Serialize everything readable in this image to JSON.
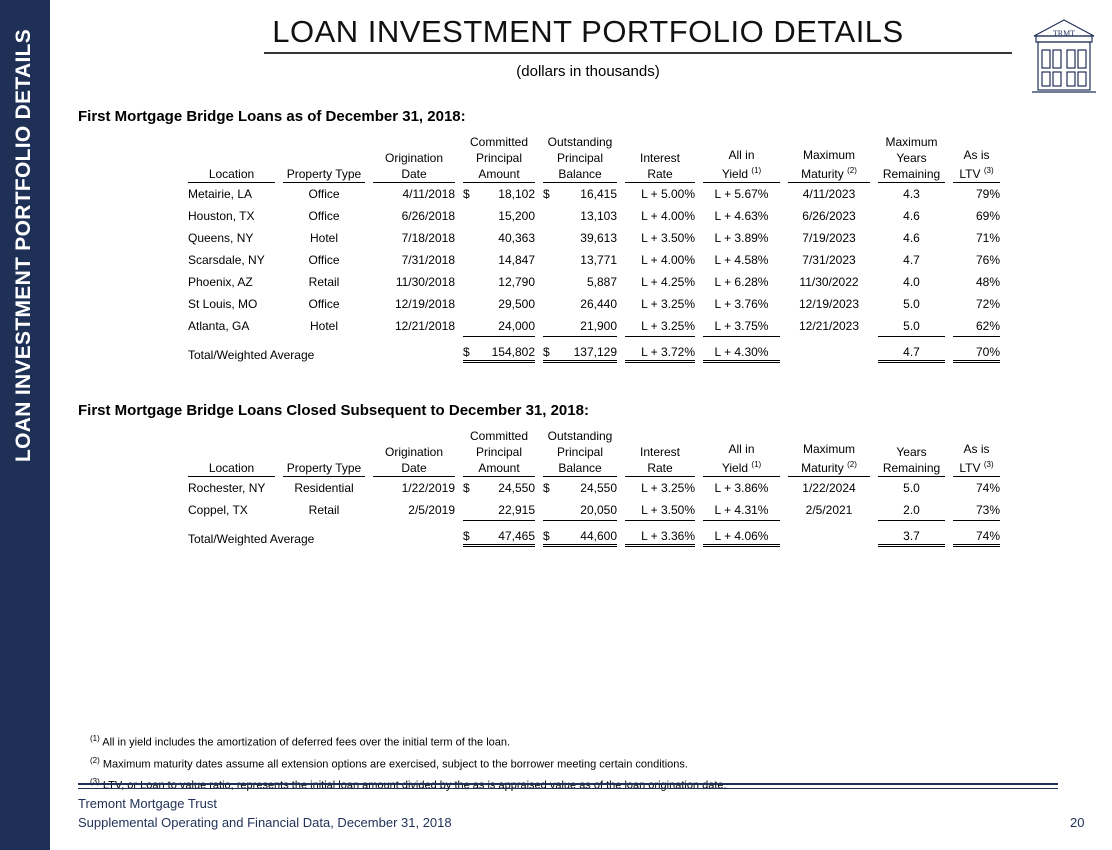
{
  "sidebar": "LOAN INVESTMENT PORTFOLIO DETAILS",
  "header": {
    "title": "LOAN INVESTMENT PORTFOLIO DETAILS",
    "subtitle": "(dollars in thousands)",
    "logo": "TRMT"
  },
  "tables": [
    {
      "heading": "First Mortgage Bridge Loans as of December 31, 2018:",
      "columns": [
        {
          "lines": [
            "Location"
          ]
        },
        {
          "lines": [
            "Property Type"
          ]
        },
        {
          "lines": [
            "Origination",
            "Date"
          ]
        },
        {
          "lines": [
            "Committed",
            "Principal",
            "Amount"
          ]
        },
        {
          "lines": [
            "Outstanding",
            "Principal",
            "Balance"
          ]
        },
        {
          "lines": [
            "Interest",
            "Rate"
          ]
        },
        {
          "lines": [
            "All in",
            "Yield"
          ],
          "note": "(1)"
        },
        {
          "lines": [
            "Maximum",
            "Maturity"
          ],
          "note": "(2)"
        },
        {
          "lines": [
            "Maximum",
            "Years",
            "Remaining"
          ]
        },
        {
          "lines": [
            "As is",
            "LTV"
          ],
          "note": "(3)"
        }
      ],
      "rows": [
        [
          "Metairie, LA",
          "Office",
          "4/11/2018",
          {
            "symbol": "$",
            "text": "18,102"
          },
          {
            "symbol": "$",
            "text": "16,415"
          },
          "L + 5.00%",
          "L + 5.67%",
          "4/11/2023",
          "4.3",
          "79%"
        ],
        [
          "Houston, TX",
          "Office",
          "6/26/2018",
          "15,200",
          "13,103",
          "L + 4.00%",
          "L + 4.63%",
          "6/26/2023",
          "4.6",
          "69%"
        ],
        [
          "Queens, NY",
          "Hotel",
          "7/18/2018",
          "40,363",
          "39,613",
          "L + 3.50%",
          "L + 3.89%",
          "7/19/2023",
          "4.6",
          "71%"
        ],
        [
          "Scarsdale, NY",
          "Office",
          "7/31/2018",
          "14,847",
          "13,771",
          "L + 4.00%",
          "L + 4.58%",
          "7/31/2023",
          "4.7",
          "76%"
        ],
        [
          "Phoenix, AZ",
          "Retail",
          "11/30/2018",
          "12,790",
          "5,887",
          "L + 4.25%",
          "L + 6.28%",
          "11/30/2022",
          "4.0",
          "48%"
        ],
        [
          "St Louis, MO",
          "Office",
          "12/19/2018",
          "29,500",
          "26,440",
          "L + 3.25%",
          "L + 3.76%",
          "12/19/2023",
          "5.0",
          "72%"
        ],
        [
          "Atlanta, GA",
          "Hotel",
          "12/21/2018",
          "24,000",
          "21,900",
          "L + 3.25%",
          "L + 3.75%",
          "12/21/2023",
          "5.0",
          "62%"
        ]
      ],
      "total": {
        "label": "Total/Weighted Average",
        "cells": [
          {
            "symbol": "$",
            "text": "154,802"
          },
          {
            "symbol": "$",
            "text": "137,129"
          },
          "L + 3.72%",
          "L + 4.30%",
          null,
          "4.7",
          "70%"
        ]
      }
    },
    {
      "heading": "First Mortgage Bridge Loans Closed Subsequent to December 31, 2018:",
      "columns": [
        {
          "lines": [
            "Location"
          ]
        },
        {
          "lines": [
            "Property Type"
          ]
        },
        {
          "lines": [
            "Origination",
            "Date"
          ]
        },
        {
          "lines": [
            "Committed",
            "Principal",
            "Amount"
          ]
        },
        {
          "lines": [
            "Outstanding",
            "Principal",
            "Balance"
          ]
        },
        {
          "lines": [
            "Interest",
            "Rate"
          ]
        },
        {
          "lines": [
            "All in",
            "Yield"
          ],
          "note": "(1)"
        },
        {
          "lines": [
            "Maximum",
            "Maturity"
          ],
          "note": "(2)"
        },
        {
          "lines": [
            "Years",
            "Remaining"
          ]
        },
        {
          "lines": [
            "As is",
            "LTV"
          ],
          "note": "(3)"
        }
      ],
      "rows": [
        [
          "Rochester, NY",
          "Residential",
          "1/22/2019",
          {
            "symbol": "$",
            "text": "24,550"
          },
          {
            "symbol": "$",
            "text": "24,550"
          },
          "L + 3.25%",
          "L + 3.86%",
          "1/22/2024",
          "5.0",
          "74%"
        ],
        [
          "Coppel, TX",
          "Retail",
          "2/5/2019",
          "22,915",
          "20,050",
          "L + 3.50%",
          "L + 4.31%",
          "2/5/2021",
          "2.0",
          "73%"
        ]
      ],
      "total": {
        "label": "Total/Weighted Average",
        "cells": [
          {
            "symbol": "$",
            "text": "47,465"
          },
          {
            "symbol": "$",
            "text": "44,600"
          },
          "L + 3.36%",
          "L + 4.06%",
          null,
          "3.7",
          "74%"
        ]
      }
    }
  ],
  "footnotes": [
    {
      "mark": "(1)",
      "text": "All in yield includes the amortization of deferred fees over the initial term of the loan."
    },
    {
      "mark": "(2)",
      "text": "Maximum maturity dates assume all extension options are exercised, subject to the borrower meeting certain conditions."
    },
    {
      "mark": "(3)",
      "text": "LTV, or Loan to value ratio, represents the initial loan amount divided by the as is appraised value as of the loan origination date."
    }
  ],
  "footer": {
    "company": "Tremont Mortgage Trust",
    "report": "Supplemental Operating and Financial Data, December 31, 2018",
    "page": "20"
  }
}
